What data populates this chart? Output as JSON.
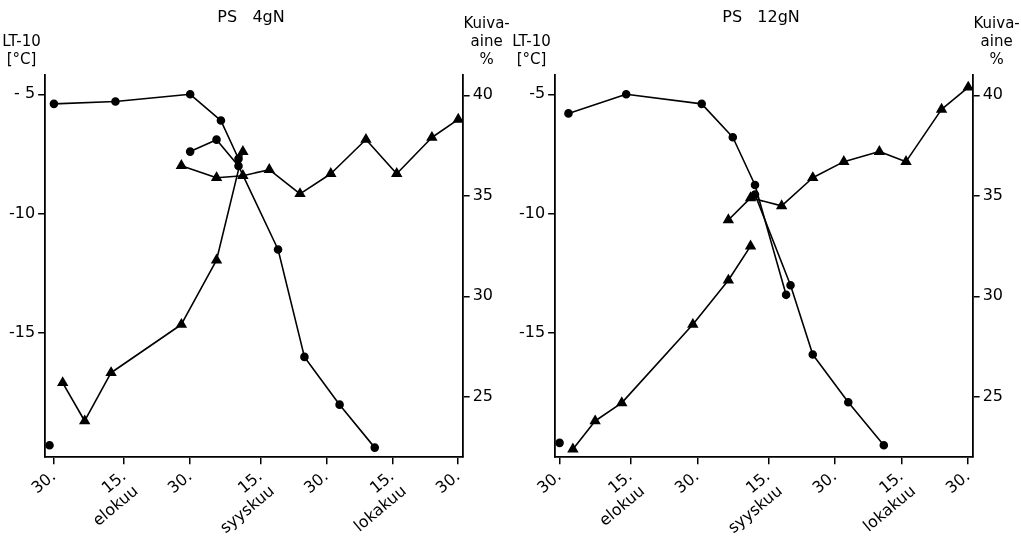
{
  "chart_data": [
    {
      "type": "line",
      "title": "PS   4gN",
      "ylabel": "LT-10 [°C]",
      "y2label": "Kuiva-aine %",
      "xlim": [
        "--07-28",
        "--10-31"
      ],
      "xticks": [
        {
          "value": "--07-30",
          "label": "30."
        },
        {
          "value": "--08-15",
          "label": "15.\nelokuu"
        },
        {
          "value": "--08-30",
          "label": "30."
        },
        {
          "value": "--09-15",
          "label": "15.\nsyyskuu"
        },
        {
          "value": "--09-30",
          "label": "30."
        },
        {
          "value": "--10-15",
          "label": "15.\nlokakuu"
        },
        {
          "value": "--10-30",
          "label": "30."
        }
      ],
      "ylim": [
        -20.2,
        -4.2
      ],
      "yticks": [
        {
          "value": -5,
          "label": "- 5"
        },
        -10,
        -15
      ],
      "y2lim": [
        22,
        41
      ],
      "y2ticks": [
        25,
        30,
        35,
        40
      ],
      "grid": false,
      "legend": false,
      "line_style": "solid",
      "series": [
        {
          "color": "#000000",
          "marker": "circle",
          "x": [
            "--07-30",
            "--08-13",
            "--08-30",
            "--09-06",
            "--09-10"
          ],
          "values": [
            -5.4,
            -5.3,
            -5.0,
            -6.1,
            -7.7
          ]
        },
        {
          "color": "#000000",
          "marker": "circle",
          "x": [
            "--07-29",
            "--08-15",
            "--08-30",
            "--09-05",
            "--09-10",
            "--09-19",
            "--09-25",
            "--10-03",
            "--10-11"
          ],
          "values": [
            -19.7,
            null,
            -7.4,
            -6.9,
            -8.0,
            -11.5,
            -16.0,
            -18.0,
            -19.8
          ]
        },
        {
          "color": "#000000",
          "marker": "triangle",
          "axis": "y2",
          "x": [
            "--08-01",
            "--08-06",
            "--08-12",
            "--08-28",
            "--09-05",
            "--09-11"
          ],
          "values": [
            25.7,
            23.8,
            26.2,
            28.6,
            31.8,
            37.2
          ]
        },
        {
          "color": "#000000",
          "marker": "triangle",
          "axis": "y2",
          "x": [
            "--08-28",
            "--09-05",
            "--09-11",
            "--09-17",
            "--09-24",
            "--10-01",
            "--10-09",
            "--10-16",
            "--10-24",
            "--10-30"
          ],
          "values": [
            36.5,
            35.9,
            36.0,
            36.3,
            35.1,
            36.1,
            37.8,
            36.1,
            37.9,
            38.8
          ]
        }
      ]
    },
    {
      "type": "line",
      "title": "PS   12gN",
      "ylabel": "LT-10 [°C]",
      "y2label": "Kuiva-aine %",
      "xlim": [
        "--07-29",
        "--10-31"
      ],
      "xticks": [
        {
          "value": "--07-30",
          "label": "30."
        },
        {
          "value": "--08-15",
          "label": "15.\nelokuu"
        },
        {
          "value": "--08-30",
          "label": "30."
        },
        {
          "value": "--09-15",
          "label": "15.\nsyyskuu"
        },
        {
          "value": "--09-30",
          "label": "30."
        },
        {
          "value": "--10-15",
          "label": "15.\nlokakuu"
        },
        {
          "value": "--10-30",
          "label": "30."
        }
      ],
      "ylim": [
        -20.2,
        -4.2
      ],
      "yticks": [
        -5,
        -10,
        -15
      ],
      "y2lim": [
        22,
        41
      ],
      "y2ticks": [
        25,
        30,
        35,
        40
      ],
      "grid": false,
      "legend": false,
      "line_style": "solid",
      "series": [
        {
          "color": "#000000",
          "marker": "circle",
          "x": [
            "--08-01",
            "--08-14",
            "--08-31",
            "--09-07",
            "--09-12",
            "--09-19"
          ],
          "values": [
            -5.8,
            -5.0,
            -5.4,
            -6.8,
            -8.8,
            -13.4
          ]
        },
        {
          "color": "#000000",
          "marker": "circle",
          "x": [
            "--07-30",
            "--08-15",
            "--09-12",
            "--09-20",
            "--09-25",
            "--10-03",
            "--10-11"
          ],
          "values": [
            -19.6,
            null,
            -9.2,
            -13.0,
            -15.9,
            -17.9,
            -19.7
          ]
        },
        {
          "color": "#000000",
          "marker": "triangle",
          "axis": "y2",
          "x": [
            "--08-02",
            "--08-07",
            "--08-13",
            "--08-29",
            "--09-06",
            "--09-11"
          ],
          "values": [
            22.4,
            23.8,
            24.7,
            28.6,
            30.8,
            32.5
          ]
        },
        {
          "color": "#000000",
          "marker": "triangle",
          "axis": "y2",
          "x": [
            "--09-06",
            "--09-11",
            "--09-18",
            "--09-25",
            "--10-02",
            "--10-10",
            "--10-16",
            "--10-24",
            "--10-30"
          ],
          "values": [
            33.8,
            34.9,
            34.5,
            35.9,
            36.7,
            37.2,
            36.7,
            39.3,
            40.4
          ]
        }
      ]
    }
  ]
}
